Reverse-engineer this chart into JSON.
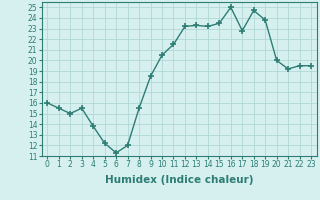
{
  "x": [
    0,
    1,
    2,
    3,
    4,
    5,
    6,
    7,
    8,
    9,
    10,
    11,
    12,
    13,
    14,
    15,
    16,
    17,
    18,
    19,
    20,
    21,
    22,
    23
  ],
  "y": [
    16,
    15.5,
    15,
    15.5,
    13.8,
    12.2,
    11.3,
    12,
    15.5,
    18.5,
    20.5,
    21.5,
    23.2,
    23.3,
    23.2,
    23.5,
    25.0,
    22.8,
    24.7,
    23.8,
    20.0,
    19.2,
    19.5,
    19.5
  ],
  "line_color": "#2d7d74",
  "marker": "+",
  "marker_size": 4,
  "linewidth": 1.0,
  "bg_color": "#d6f0ef",
  "grid_color": "#b0d8d5",
  "xlabel": "Humidex (Indice chaleur)",
  "xlim": [
    -0.5,
    23.5
  ],
  "ylim": [
    11,
    25.5
  ],
  "yticks": [
    11,
    12,
    13,
    14,
    15,
    16,
    17,
    18,
    19,
    20,
    21,
    22,
    23,
    24,
    25
  ],
  "xticks": [
    0,
    1,
    2,
    3,
    4,
    5,
    6,
    7,
    8,
    9,
    10,
    11,
    12,
    13,
    14,
    15,
    16,
    17,
    18,
    19,
    20,
    21,
    22,
    23
  ],
  "tick_fontsize": 5.5,
  "xlabel_fontsize": 7.5
}
